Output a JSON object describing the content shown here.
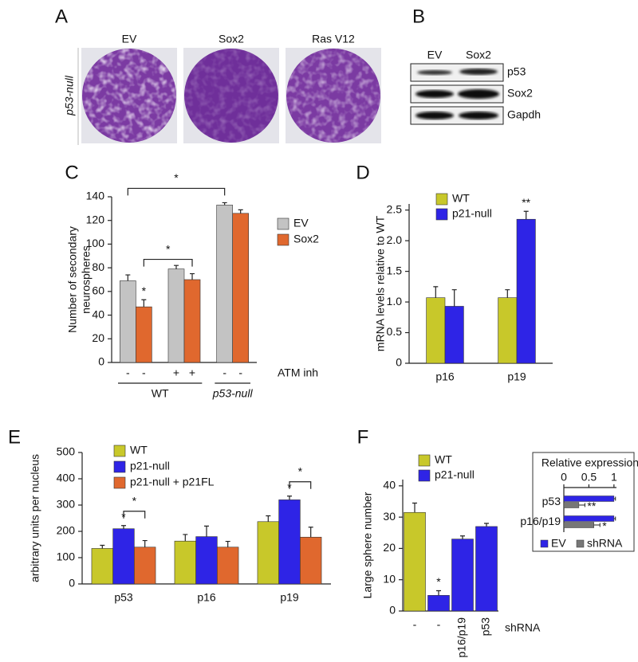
{
  "panel_letters": {
    "a": "A",
    "b": "B",
    "c": "C",
    "d": "D",
    "e": "E",
    "f": "F"
  },
  "panel_a": {
    "columns": [
      "EV",
      "Sox2",
      "Ras V12"
    ],
    "row_label": "p53-null"
  },
  "panel_b": {
    "columns": [
      "EV",
      "Sox2"
    ],
    "rows": [
      "p53",
      "Sox2",
      "Gapdh"
    ]
  },
  "chart_data": [
    {
      "type": "bar",
      "ylabel": [
        "Number of secondary",
        "neurospheres"
      ],
      "ylim": [
        0,
        140
      ],
      "yticks": [
        0,
        20,
        40,
        60,
        80,
        100,
        120,
        140
      ],
      "series": [
        {
          "name": "EV",
          "color": "#c3c3c3",
          "values": [
            69,
            79,
            133
          ],
          "errors": [
            5,
            3,
            2
          ]
        },
        {
          "name": "Sox2",
          "color": "#e0682e",
          "values": [
            47,
            70,
            126
          ],
          "errors": [
            6,
            5,
            3
          ]
        }
      ],
      "bar_labels": [
        [
          "-",
          "-"
        ],
        [
          "+",
          "+"
        ],
        [
          "-",
          "-"
        ]
      ],
      "bar_labels_title": "ATM inh",
      "group_labels": [
        {
          "text": "WT",
          "groups": [
            0,
            1
          ]
        },
        {
          "text": "p53-null",
          "groups": [
            2
          ]
        }
      ],
      "stars": [
        {
          "text": "*",
          "series": 1,
          "index": 0
        }
      ],
      "brackets": [
        {
          "text": "*",
          "from": [
            0,
            0
          ],
          "to": [
            0,
            2
          ]
        },
        {
          "text": "*",
          "from": [
            1,
            0
          ],
          "to": [
            1,
            1
          ]
        }
      ]
    },
    {
      "type": "bar",
      "ylabel": "mRNA levels relative to WT",
      "categories": [
        "p16",
        "p19"
      ],
      "ylim": [
        0,
        2.6
      ],
      "yticks": [
        0,
        0.5,
        {
          "value": 1,
          "label": "1.0"
        },
        1.5,
        {
          "value": 2,
          "label": "2.0"
        },
        2.5
      ],
      "series": [
        {
          "name": "WT",
          "color": "#c8c82a",
          "values": [
            1.07,
            1.07
          ],
          "errors": [
            0.18,
            0.13
          ]
        },
        {
          "name": "p21-null",
          "color": "#2e24e6",
          "values": [
            0.93,
            2.35
          ],
          "errors": [
            0.27,
            0.13
          ]
        }
      ],
      "stars": [
        {
          "text": "**",
          "series": 1,
          "index": 1
        }
      ]
    },
    {
      "type": "bar",
      "ylabel": "arbitrary units per nucleus",
      "categories": [
        "p53",
        "p16",
        "p19"
      ],
      "ylim": [
        0,
        500
      ],
      "yticks": [
        0,
        100,
        200,
        300,
        400,
        500
      ],
      "series": [
        {
          "name": "WT",
          "color": "#c8c82a",
          "values": [
            135,
            163,
            237
          ],
          "errors": [
            12,
            25,
            22
          ]
        },
        {
          "name": "p21-null",
          "color": "#2e24e6",
          "values": [
            210,
            180,
            320
          ],
          "errors": [
            12,
            40,
            14
          ]
        },
        {
          "name": "p21-null + p21FL",
          "color": "#e0682e",
          "values": [
            140,
            140,
            178
          ],
          "errors": [
            25,
            22,
            38
          ]
        }
      ],
      "stars": [
        {
          "text": "*",
          "series": 1,
          "index": 0
        },
        {
          "text": "*",
          "series": 1,
          "index": 2
        }
      ],
      "brackets": [
        {
          "text": "*",
          "from": [
            1,
            0
          ],
          "to": [
            2,
            0
          ]
        },
        {
          "text": "*",
          "from": [
            1,
            2
          ],
          "to": [
            2,
            2
          ]
        }
      ]
    },
    {
      "type": "bar",
      "ylabel": "Large sphere number",
      "categories": [
        "-",
        "-",
        "p16/p19",
        "p53"
      ],
      "xlabel": "shRNA",
      "ylim": [
        0,
        42
      ],
      "yticks": [
        0,
        10,
        20,
        30,
        40
      ],
      "series": [
        {
          "name": "WT",
          "color": "#c8c82a",
          "values": [
            31.5,
            null,
            null,
            null
          ],
          "errors": [
            3,
            null,
            null,
            null
          ]
        },
        {
          "name": "p21-null",
          "color": "#2e24e6",
          "values": [
            null,
            5,
            23,
            27
          ],
          "errors": [
            null,
            1.5,
            1,
            1
          ]
        }
      ],
      "stars": [
        {
          "text": "*",
          "series": 1,
          "index": 1
        }
      ]
    },
    {
      "type": "hbar",
      "title": "Relative expression",
      "categories": [
        "p53",
        "p16/p19"
      ],
      "xlim": [
        0,
        1.05
      ],
      "xticks": [
        0,
        0.5,
        1
      ],
      "series": [
        {
          "name": "EV",
          "color": "#2e24e6",
          "values": [
            1,
            1
          ],
          "errors": [
            0.03,
            0.03
          ]
        },
        {
          "name": "shRNA",
          "color": "#777777",
          "values": [
            0.3,
            0.6
          ],
          "errors": [
            0.12,
            0.12
          ]
        }
      ],
      "stars": [
        {
          "text": "**",
          "series": 1,
          "index": 0
        },
        {
          "text": "*",
          "series": 1,
          "index": 1
        }
      ]
    }
  ]
}
